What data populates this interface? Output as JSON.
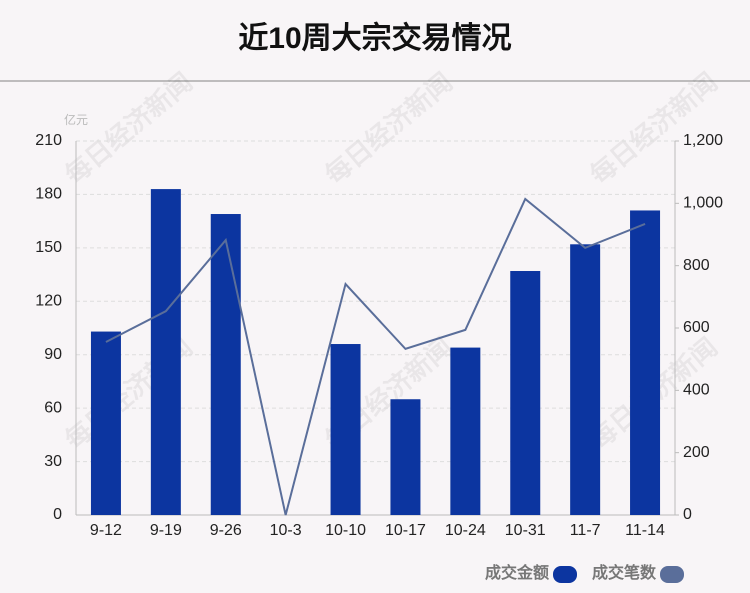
{
  "chart_data": {
    "type": "bar",
    "title": "近10周大宗交易情况",
    "y_unit": "亿元",
    "watermark": "每日经济新闻",
    "categories": [
      "9-12",
      "9-19",
      "9-26",
      "10-3",
      "10-10",
      "10-17",
      "10-24",
      "10-31",
      "11-7",
      "11-14"
    ],
    "series": [
      {
        "name": "成交金额",
        "type": "bar",
        "color": "#0c35a0",
        "values": [
          103,
          183,
          169,
          0,
          96,
          65,
          94,
          137,
          152,
          171
        ]
      },
      {
        "name": "成交笔数",
        "type": "line",
        "axis": "y2",
        "color": "#5a6e9a",
        "values": [
          555,
          654,
          882,
          0,
          741,
          533,
          594,
          1014,
          857,
          934
        ]
      }
    ],
    "ylim": [
      0,
      210
    ],
    "yticks": [
      0,
      30,
      60,
      90,
      120,
      150,
      180,
      210
    ],
    "y2lim": [
      0,
      1200
    ],
    "y2ticks": [
      0,
      200,
      400,
      600,
      800,
      {
        "value": 1000,
        "label": "1,000"
      },
      {
        "value": 1200,
        "label": "1,200"
      }
    ],
    "grid": true
  }
}
